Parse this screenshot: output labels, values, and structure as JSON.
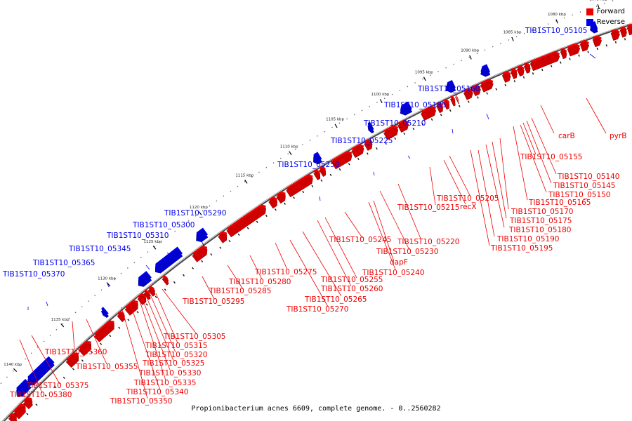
{
  "legend": {
    "forward_label": "Forward",
    "reverse_label": "Reverse",
    "forward_color": "#ee0000",
    "reverse_color": "#0000ee"
  },
  "caption": "Propionibacterium acnes 6609, complete genome. - 0..2560282",
  "ticks": [
    "1075 kbp",
    "1080 kbp",
    "1085 kbp",
    "1090 kbp",
    "1095 kbp",
    "1100 kbp",
    "1105 kbp",
    "1110 kbp",
    "1115 kbp",
    "1120 kbp",
    "1125 kbp",
    "1130 kbp",
    "1135 kbp",
    "1140 kbp"
  ],
  "reverse_genes": [
    "TIB1ST10_05105",
    "TIB1ST10_05160",
    "TIB1ST10_05185",
    "TIB1ST10_05210",
    "TIB1ST10_05225",
    "TIB1ST10_05250",
    "TIB1ST10_05290",
    "TIB1ST10_05300",
    "TIB1ST10_05310",
    "TIB1ST10_05345",
    "TIB1ST10_05365",
    "TIB1ST10_05370"
  ],
  "forward_genes": [
    "carB",
    "pyrB",
    "TIB1ST10_05155",
    "TIB1ST10_05140",
    "TIB1ST10_05145",
    "TIB1ST10_05150",
    "TIB1ST10_05165",
    "TIB1ST10_05170",
    "TIB1ST10_05175",
    "TIB1ST10_05180",
    "TIB1ST10_05190",
    "TIB1ST10_05195",
    "TIB1ST10_05205",
    "recX",
    "TIB1ST10_05215",
    "TIB1ST10_05220",
    "TIB1ST10_05230",
    "dapF",
    "TIB1ST10_05240",
    "TIB1ST10_05245",
    "TIB1ST10_05255",
    "TIB1ST10_05260",
    "TIB1ST10_05265",
    "TIB1ST10_05270",
    "TIB1ST10_05275",
    "TIB1ST10_05280",
    "TIB1ST10_05285",
    "TIB1ST10_05295",
    "TIB1ST10_05305",
    "TIB1ST10_05315",
    "TIB1ST10_05320",
    "TIB1ST10_05325",
    "TIB1ST10_05330",
    "TIB1ST10_05335",
    "TIB1ST10_05340",
    "TIB1ST10_05350",
    "TIB1ST10_05355",
    "TIB1ST10_05360",
    "TIB1ST10_05375",
    "TIB1ST10_05380"
  ]
}
